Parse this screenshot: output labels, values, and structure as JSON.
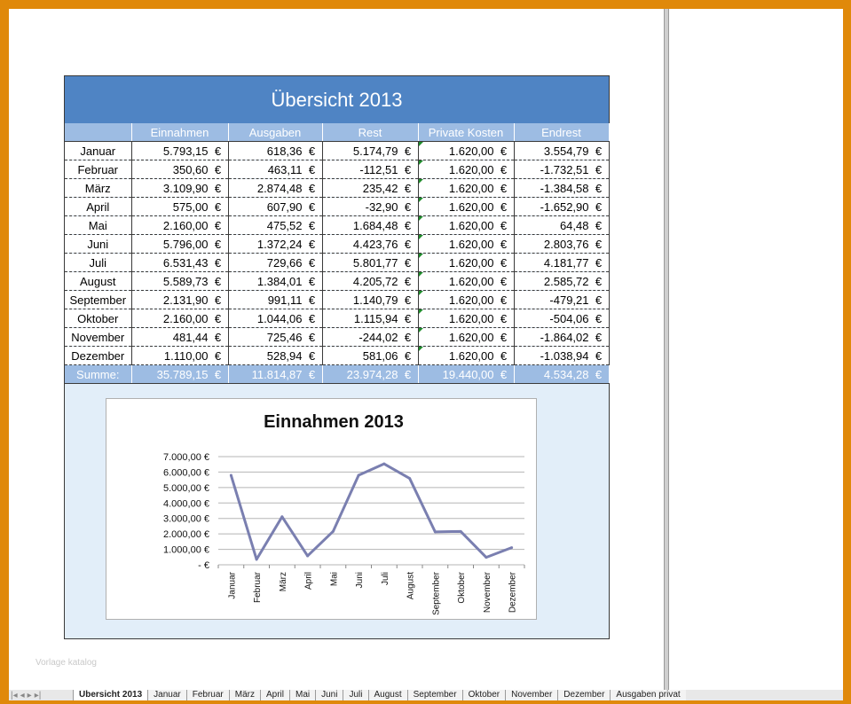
{
  "overview": {
    "title": "Übersicht 2013",
    "currency": "€",
    "headers": [
      "",
      "Einnahmen",
      "Ausgaben",
      "Rest",
      "Private Kosten",
      "Endrest"
    ],
    "rows": [
      {
        "month": "Januar",
        "einnahmen": "5.793,15",
        "ausgaben": "618,36",
        "rest": "5.174,79",
        "privat": "1.620,00",
        "endrest": "3.554,79"
      },
      {
        "month": "Februar",
        "einnahmen": "350,60",
        "ausgaben": "463,11",
        "rest": "-112,51",
        "privat": "1.620,00",
        "endrest": "-1.732,51"
      },
      {
        "month": "März",
        "einnahmen": "3.109,90",
        "ausgaben": "2.874,48",
        "rest": "235,42",
        "privat": "1.620,00",
        "endrest": "-1.384,58"
      },
      {
        "month": "April",
        "einnahmen": "575,00",
        "ausgaben": "607,90",
        "rest": "-32,90",
        "privat": "1.620,00",
        "endrest": "-1.652,90"
      },
      {
        "month": "Mai",
        "einnahmen": "2.160,00",
        "ausgaben": "475,52",
        "rest": "1.684,48",
        "privat": "1.620,00",
        "endrest": "64,48"
      },
      {
        "month": "Juni",
        "einnahmen": "5.796,00",
        "ausgaben": "1.372,24",
        "rest": "4.423,76",
        "privat": "1.620,00",
        "endrest": "2.803,76"
      },
      {
        "month": "Juli",
        "einnahmen": "6.531,43",
        "ausgaben": "729,66",
        "rest": "5.801,77",
        "privat": "1.620,00",
        "endrest": "4.181,77"
      },
      {
        "month": "August",
        "einnahmen": "5.589,73",
        "ausgaben": "1.384,01",
        "rest": "4.205,72",
        "privat": "1.620,00",
        "endrest": "2.585,72"
      },
      {
        "month": "September",
        "einnahmen": "2.131,90",
        "ausgaben": "991,11",
        "rest": "1.140,79",
        "privat": "1.620,00",
        "endrest": "-479,21"
      },
      {
        "month": "Oktober",
        "einnahmen": "2.160,00",
        "ausgaben": "1.044,06",
        "rest": "1.115,94",
        "privat": "1.620,00",
        "endrest": "-504,06"
      },
      {
        "month": "November",
        "einnahmen": "481,44",
        "ausgaben": "725,46",
        "rest": "-244,02",
        "privat": "1.620,00",
        "endrest": "-1.864,02"
      },
      {
        "month": "Dezember",
        "einnahmen": "1.110,00",
        "ausgaben": "528,94",
        "rest": "581,06",
        "privat": "1.620,00",
        "endrest": "-1.038,94"
      }
    ],
    "sum": {
      "label": "Summe:",
      "einnahmen": "35.789,15",
      "ausgaben": "11.814,87",
      "rest": "23.974,28",
      "privat": "19.440,00",
      "endrest": "4.534,28"
    }
  },
  "chart_data": {
    "type": "line",
    "title": "Einnahmen 2013",
    "categories": [
      "Januar",
      "Februar",
      "März",
      "April",
      "Mai",
      "Juni",
      "Juli",
      "August",
      "September",
      "Oktober",
      "November",
      "Dezember"
    ],
    "series": [
      {
        "values": [
          5793.15,
          350.6,
          3109.9,
          575.0,
          2160.0,
          5796.0,
          6531.43,
          5589.73,
          2131.9,
          2160.0,
          481.44,
          1110.0
        ]
      }
    ],
    "ylim": [
      0,
      7000
    ],
    "yticks": [
      "-   €",
      "1.000,00  €",
      "2.000,00  €",
      "3.000,00  €",
      "4.000,00  €",
      "5.000,00  €",
      "6.000,00  €",
      "7.000,00  €"
    ],
    "grid": true,
    "line_color": "#7A7FB0"
  },
  "watermark": "Vorlage katalog",
  "tabs": [
    "Übersicht 2013",
    "Januar",
    "Februar",
    "März",
    "April",
    "Mai",
    "Juni",
    "Juli",
    "August",
    "September",
    "Oktober",
    "November",
    "Dezember",
    "Ausgaben privat"
  ],
  "active_tab": "Übersicht 2013"
}
